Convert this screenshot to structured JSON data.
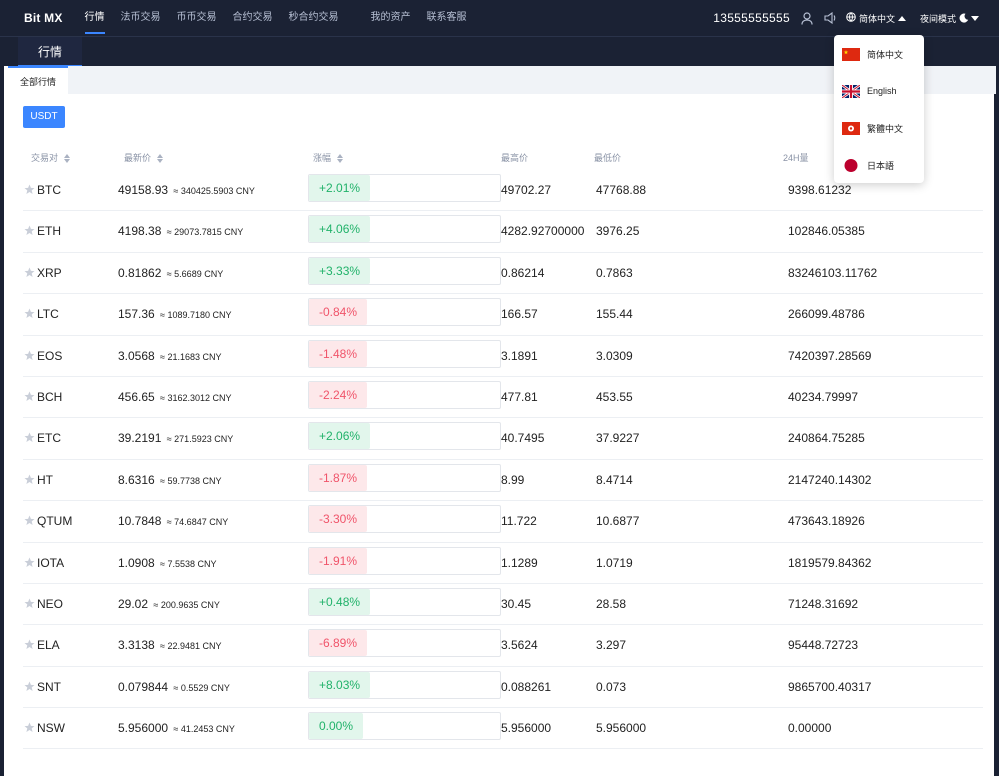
{
  "app": {
    "logo": "Bit MX"
  },
  "nav": {
    "items": [
      {
        "label": "行情",
        "active": true
      },
      {
        "label": "法币交易"
      },
      {
        "label": "币币交易"
      },
      {
        "label": "合约交易"
      },
      {
        "label": "秒合约交易"
      },
      {
        "label": "我的资产"
      },
      {
        "label": "联系客服"
      }
    ]
  },
  "header": {
    "phone": "13555555555",
    "language": "简体中文",
    "night_mode": "夜间模式"
  },
  "subheader": {
    "title": "行情"
  },
  "tabs": {
    "all": "全部行情"
  },
  "filter": {
    "usdt": "USDT"
  },
  "table": {
    "columns": [
      "交易对",
      "最新价",
      "涨幅",
      "最高价",
      "最低价",
      "24H量"
    ],
    "rows": [
      {
        "pair": "BTC",
        "price": "49158.93",
        "cny": "≈ 340425.5903 CNY",
        "change": "+2.01%",
        "dir": "up",
        "high": "49702.27",
        "low": "47768.88",
        "vol": "9398.61232"
      },
      {
        "pair": "ETH",
        "price": "4198.38",
        "cny": "≈ 29073.7815 CNY",
        "change": "+4.06%",
        "dir": "up",
        "high": "4282.92700000",
        "low": "3976.25",
        "vol": "102846.05385"
      },
      {
        "pair": "XRP",
        "price": "0.81862",
        "cny": "≈ 5.6689 CNY",
        "change": "+3.33%",
        "dir": "up",
        "high": "0.86214",
        "low": "0.7863",
        "vol": "83246103.11762"
      },
      {
        "pair": "LTC",
        "price": "157.36",
        "cny": "≈ 1089.7180 CNY",
        "change": "-0.84%",
        "dir": "down",
        "high": "166.57",
        "low": "155.44",
        "vol": "266099.48786"
      },
      {
        "pair": "EOS",
        "price": "3.0568",
        "cny": "≈ 21.1683 CNY",
        "change": "-1.48%",
        "dir": "down",
        "high": "3.1891",
        "low": "3.0309",
        "vol": "7420397.28569"
      },
      {
        "pair": "BCH",
        "price": "456.65",
        "cny": "≈ 3162.3012 CNY",
        "change": "-2.24%",
        "dir": "down",
        "high": "477.81",
        "low": "453.55",
        "vol": "40234.79997"
      },
      {
        "pair": "ETC",
        "price": "39.2191",
        "cny": "≈ 271.5923 CNY",
        "change": "+2.06%",
        "dir": "up",
        "high": "40.7495",
        "low": "37.9227",
        "vol": "240864.75285"
      },
      {
        "pair": "HT",
        "price": "8.6316",
        "cny": "≈ 59.7738 CNY",
        "change": "-1.87%",
        "dir": "down",
        "high": "8.99",
        "low": "8.4714",
        "vol": "2147240.14302"
      },
      {
        "pair": "QTUM",
        "price": "10.7848",
        "cny": "≈ 74.6847 CNY",
        "change": "-3.30%",
        "dir": "down",
        "high": "11.722",
        "low": "10.6877",
        "vol": "473643.18926"
      },
      {
        "pair": "IOTA",
        "price": "1.0908",
        "cny": "≈ 7.5538 CNY",
        "change": "-1.91%",
        "dir": "down",
        "high": "1.1289",
        "low": "1.0719",
        "vol": "1819579.84362"
      },
      {
        "pair": "NEO",
        "price": "29.02",
        "cny": "≈ 200.9635 CNY",
        "change": "+0.48%",
        "dir": "up",
        "high": "30.45",
        "low": "28.58",
        "vol": "71248.31692"
      },
      {
        "pair": "ELA",
        "price": "3.3138",
        "cny": "≈ 22.9481 CNY",
        "change": "-6.89%",
        "dir": "down",
        "high": "3.5624",
        "low": "3.297",
        "vol": "95448.72723"
      },
      {
        "pair": "SNT",
        "price": "0.079844",
        "cny": "≈ 0.5529 CNY",
        "change": "+8.03%",
        "dir": "up",
        "high": "0.088261",
        "low": "0.073",
        "vol": "9865700.40317"
      },
      {
        "pair": "NSW",
        "price": "5.956000",
        "cny": "≈ 41.2453 CNY",
        "change": "0.00%",
        "dir": "flat",
        "high": "5.956000",
        "low": "5.956000",
        "vol": "0.00000"
      }
    ]
  },
  "lang_dropdown": {
    "options": [
      {
        "label": "简体中文",
        "flag": "cn-flag"
      },
      {
        "label": "English",
        "flag": "uk-flag"
      },
      {
        "label": "繁體中文",
        "flag": "hk-flag"
      },
      {
        "label": "日本語",
        "flag": "jp-flag"
      }
    ]
  },
  "colors": {
    "accent": "#3b86ff",
    "up": "#21b26a",
    "down": "#f0546a",
    "nav_bg": "#1b2234"
  }
}
